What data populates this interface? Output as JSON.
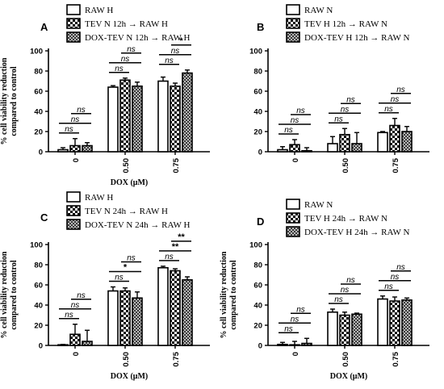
{
  "x_unit_word": "DOX",
  "chart_data": [
    {
      "type": "bar",
      "panel": "A",
      "legend": [
        "RAW H",
        "TEV N 12h → RAW H",
        "DOX-TEV N 12h → RAW H"
      ],
      "categories": [
        "0",
        "0.50",
        "0.75"
      ],
      "series": [
        {
          "name": "RAW H",
          "values": [
            2,
            64,
            70
          ],
          "errors": [
            2,
            1.5,
            4
          ]
        },
        {
          "name": "TEV N 12h → RAW H",
          "values": [
            6,
            71,
            65
          ],
          "errors": [
            7,
            2,
            3
          ]
        },
        {
          "name": "DOX-TEV N 12h → RAW H",
          "values": [
            6,
            65,
            78
          ],
          "errors": [
            3,
            4,
            3
          ]
        }
      ],
      "xlabel": "DOX (μM)",
      "ylabel": "% cell viability reduction compared to control",
      "ylim": [
        0,
        100
      ],
      "yticks": [
        "0",
        "20",
        "40",
        "60",
        "80",
        "100"
      ],
      "significance": [
        {
          "group": 0,
          "from": 0,
          "to": 1,
          "level": 0,
          "label": "ns"
        },
        {
          "group": 0,
          "from": 0,
          "to": 2,
          "level": 1,
          "label": "ns"
        },
        {
          "group": 0,
          "from": 1,
          "to": 2,
          "level": 2,
          "label": "ns"
        },
        {
          "group": 1,
          "from": 0,
          "to": 1,
          "level": 0,
          "label": "ns"
        },
        {
          "group": 1,
          "from": 0,
          "to": 2,
          "level": 1,
          "label": "ns"
        },
        {
          "group": 1,
          "from": 1,
          "to": 2,
          "level": 2,
          "label": "ns"
        },
        {
          "group": 2,
          "from": 0,
          "to": 1,
          "level": 0,
          "label": "ns"
        },
        {
          "group": 2,
          "from": 0,
          "to": 2,
          "level": 1,
          "label": "ns"
        },
        {
          "group": 2,
          "from": 1,
          "to": 2,
          "level": 2,
          "label": "*"
        }
      ]
    },
    {
      "type": "bar",
      "panel": "B",
      "legend": [
        "RAW N",
        "TEV H 12h → RAW N",
        "DOX-TEV H 12h → RAW N"
      ],
      "categories": [
        "0",
        "0.50",
        "0.75"
      ],
      "series": [
        {
          "name": "RAW N",
          "values": [
            2,
            8,
            19
          ],
          "errors": [
            3,
            7,
            1
          ]
        },
        {
          "name": "TEV H 12h → RAW N",
          "values": [
            7,
            17,
            26
          ],
          "errors": [
            5,
            6,
            7
          ]
        },
        {
          "name": "DOX-TEV H 12h → RAW N",
          "values": [
            1,
            8,
            20
          ],
          "errors": [
            3,
            11,
            5
          ]
        }
      ],
      "xlabel": "",
      "ylabel": "",
      "ylim": [
        0,
        100
      ],
      "yticks": [
        "0",
        "20",
        "40",
        "60",
        "80",
        "100"
      ],
      "significance": [
        {
          "group": 0,
          "from": 0,
          "to": 1,
          "level": 0,
          "label": "ns"
        },
        {
          "group": 0,
          "from": 0,
          "to": 2,
          "level": 1,
          "label": "ns"
        },
        {
          "group": 0,
          "from": 1,
          "to": 2,
          "level": 2,
          "label": "ns"
        },
        {
          "group": 1,
          "from": 0,
          "to": 1,
          "level": 0,
          "label": "ns"
        },
        {
          "group": 1,
          "from": 0,
          "to": 2,
          "level": 1,
          "label": "ns"
        },
        {
          "group": 1,
          "from": 1,
          "to": 2,
          "level": 2,
          "label": "ns"
        },
        {
          "group": 2,
          "from": 0,
          "to": 1,
          "level": 0,
          "label": "ns"
        },
        {
          "group": 2,
          "from": 0,
          "to": 2,
          "level": 1,
          "label": "ns"
        },
        {
          "group": 2,
          "from": 1,
          "to": 2,
          "level": 2,
          "label": "ns"
        }
      ]
    },
    {
      "type": "bar",
      "panel": "C",
      "legend": [
        "RAW H",
        "TEV N 24h → RAW H",
        "DOX-TEV N 24h → RAW H"
      ],
      "categories": [
        "0",
        "0.50",
        "0.75"
      ],
      "series": [
        {
          "name": "RAW H",
          "values": [
            0,
            54,
            77
          ],
          "errors": [
            1,
            4,
            1.5
          ]
        },
        {
          "name": "TEV N 24h → RAW H",
          "values": [
            11,
            54,
            74
          ],
          "errors": [
            10,
            3,
            2
          ]
        },
        {
          "name": "DOX-TEV N 24h → RAW H",
          "values": [
            4,
            47,
            65
          ],
          "errors": [
            11,
            6,
            3
          ]
        }
      ],
      "xlabel": "DOX (μM)",
      "ylabel": "% cell viability reduction compared to control",
      "ylim": [
        0,
        100
      ],
      "yticks": [
        "0",
        "20",
        "40",
        "60",
        "80",
        "100"
      ],
      "significance": [
        {
          "group": 0,
          "from": 0,
          "to": 1,
          "level": 0,
          "label": "ns"
        },
        {
          "group": 0,
          "from": 0,
          "to": 2,
          "level": 1,
          "label": "ns"
        },
        {
          "group": 0,
          "from": 1,
          "to": 2,
          "level": 2,
          "label": "ns"
        },
        {
          "group": 1,
          "from": 0,
          "to": 1,
          "level": 0,
          "label": "ns"
        },
        {
          "group": 1,
          "from": 0,
          "to": 2,
          "level": 1,
          "label": "*"
        },
        {
          "group": 1,
          "from": 1,
          "to": 2,
          "level": 2,
          "label": "ns"
        },
        {
          "group": 2,
          "from": 0,
          "to": 1,
          "level": 0,
          "label": "ns"
        },
        {
          "group": 2,
          "from": 0,
          "to": 2,
          "level": 1,
          "label": "**"
        },
        {
          "group": 2,
          "from": 1,
          "to": 2,
          "level": 2,
          "label": "**"
        }
      ]
    },
    {
      "type": "bar",
      "panel": "D",
      "legend": [
        "RAW N",
        "TEV H 24h → RAW N",
        "DOX-TEV H 24h → RAW N"
      ],
      "categories": [
        "0",
        "0.50",
        "0.75"
      ],
      "series": [
        {
          "name": "RAW N",
          "values": [
            1,
            33,
            46
          ],
          "errors": [
            2,
            3,
            3
          ]
        },
        {
          "name": "TEV H 24h → RAW N",
          "values": [
            0,
            30,
            44
          ],
          "errors": [
            4,
            3,
            4
          ]
        },
        {
          "name": "DOX-TEV H 24h → RAW N",
          "values": [
            2,
            31,
            45
          ],
          "errors": [
            5,
            1,
            2
          ]
        }
      ],
      "xlabel": "DOX (μM)",
      "ylabel": "% cell viability reduction compared to control",
      "ylim": [
        0,
        100
      ],
      "yticks": [
        "0",
        "20",
        "40",
        "60",
        "80",
        "100"
      ],
      "significance": [
        {
          "group": 0,
          "from": 0,
          "to": 1,
          "level": 0,
          "label": "ns"
        },
        {
          "group": 0,
          "from": 0,
          "to": 2,
          "level": 1,
          "label": "ns"
        },
        {
          "group": 0,
          "from": 1,
          "to": 2,
          "level": 2,
          "label": "ns"
        },
        {
          "group": 1,
          "from": 0,
          "to": 1,
          "level": 0,
          "label": "ns"
        },
        {
          "group": 1,
          "from": 0,
          "to": 2,
          "level": 1,
          "label": "ns"
        },
        {
          "group": 1,
          "from": 1,
          "to": 2,
          "level": 2,
          "label": "ns"
        },
        {
          "group": 2,
          "from": 0,
          "to": 1,
          "level": 0,
          "label": "ns"
        },
        {
          "group": 2,
          "from": 0,
          "to": 2,
          "level": 1,
          "label": "ns"
        },
        {
          "group": 2,
          "from": 1,
          "to": 2,
          "level": 2,
          "label": "ns"
        }
      ]
    }
  ]
}
